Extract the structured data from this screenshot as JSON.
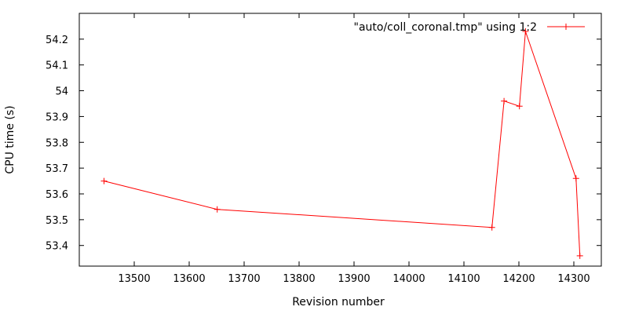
{
  "chart_data": {
    "type": "line",
    "title": "",
    "xlabel": "Revision number",
    "ylabel": "CPU time (s)",
    "xlim": [
      13400,
      14350
    ],
    "ylim": [
      53.32,
      54.3
    ],
    "xticks": [
      13500,
      13600,
      13700,
      13800,
      13900,
      14000,
      14100,
      14200,
      14300
    ],
    "xtick_labels": [
      "13500",
      "13600",
      "13700",
      "13800",
      "13900",
      "14000",
      "14100",
      "14200",
      "14300"
    ],
    "yticks": [
      53.4,
      53.5,
      53.6,
      53.7,
      53.8,
      53.9,
      54.0,
      54.1,
      54.2
    ],
    "ytick_labels": [
      "53.4",
      "53.5",
      "53.6",
      "53.7",
      "53.8",
      "53.9",
      "54",
      "54.1",
      "54.2"
    ],
    "grid": false,
    "legend_position": "top-right",
    "series": [
      {
        "name": "\"auto/coll_coronal.tmp\" using 1:2",
        "color": "#ff0000",
        "marker": "plus",
        "x": [
          13445,
          13651,
          14151,
          14173,
          14201,
          14212,
          14304,
          14311
        ],
        "y": [
          53.65,
          53.54,
          53.47,
          53.96,
          53.94,
          54.23,
          53.66,
          53.36
        ]
      }
    ]
  }
}
